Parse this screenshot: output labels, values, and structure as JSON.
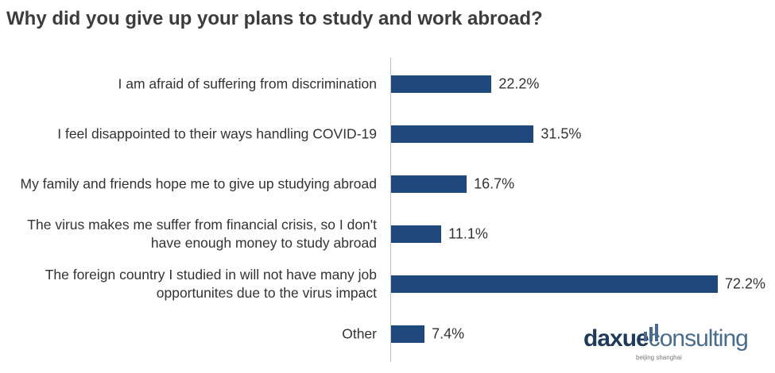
{
  "chart_data": {
    "type": "bar",
    "orientation": "horizontal",
    "title": "Why did you give up your plans to study and work abroad?",
    "categories": [
      "I am afraid of suffering from discrimination",
      "I feel disappointed to their ways handling COVID-19",
      "My family and friends hope me to give up studying abroad",
      "The virus makes me suffer from financial crisis, so I don't have enough money to study abroad",
      "The foreign country I studied in will not have many job opportunites due to the virus impact",
      "Other"
    ],
    "values": [
      22.2,
      31.5,
      16.7,
      11.1,
      72.2,
      7.4
    ],
    "value_labels": [
      "22.2%",
      "31.5%",
      "16.7%",
      "11.1%",
      "72.2%",
      "7.4%"
    ],
    "color": "#1f497d"
  },
  "logo": {
    "brand_first": "daxue",
    "brand_second": "consulting",
    "tagline": "beijing shanghai"
  }
}
